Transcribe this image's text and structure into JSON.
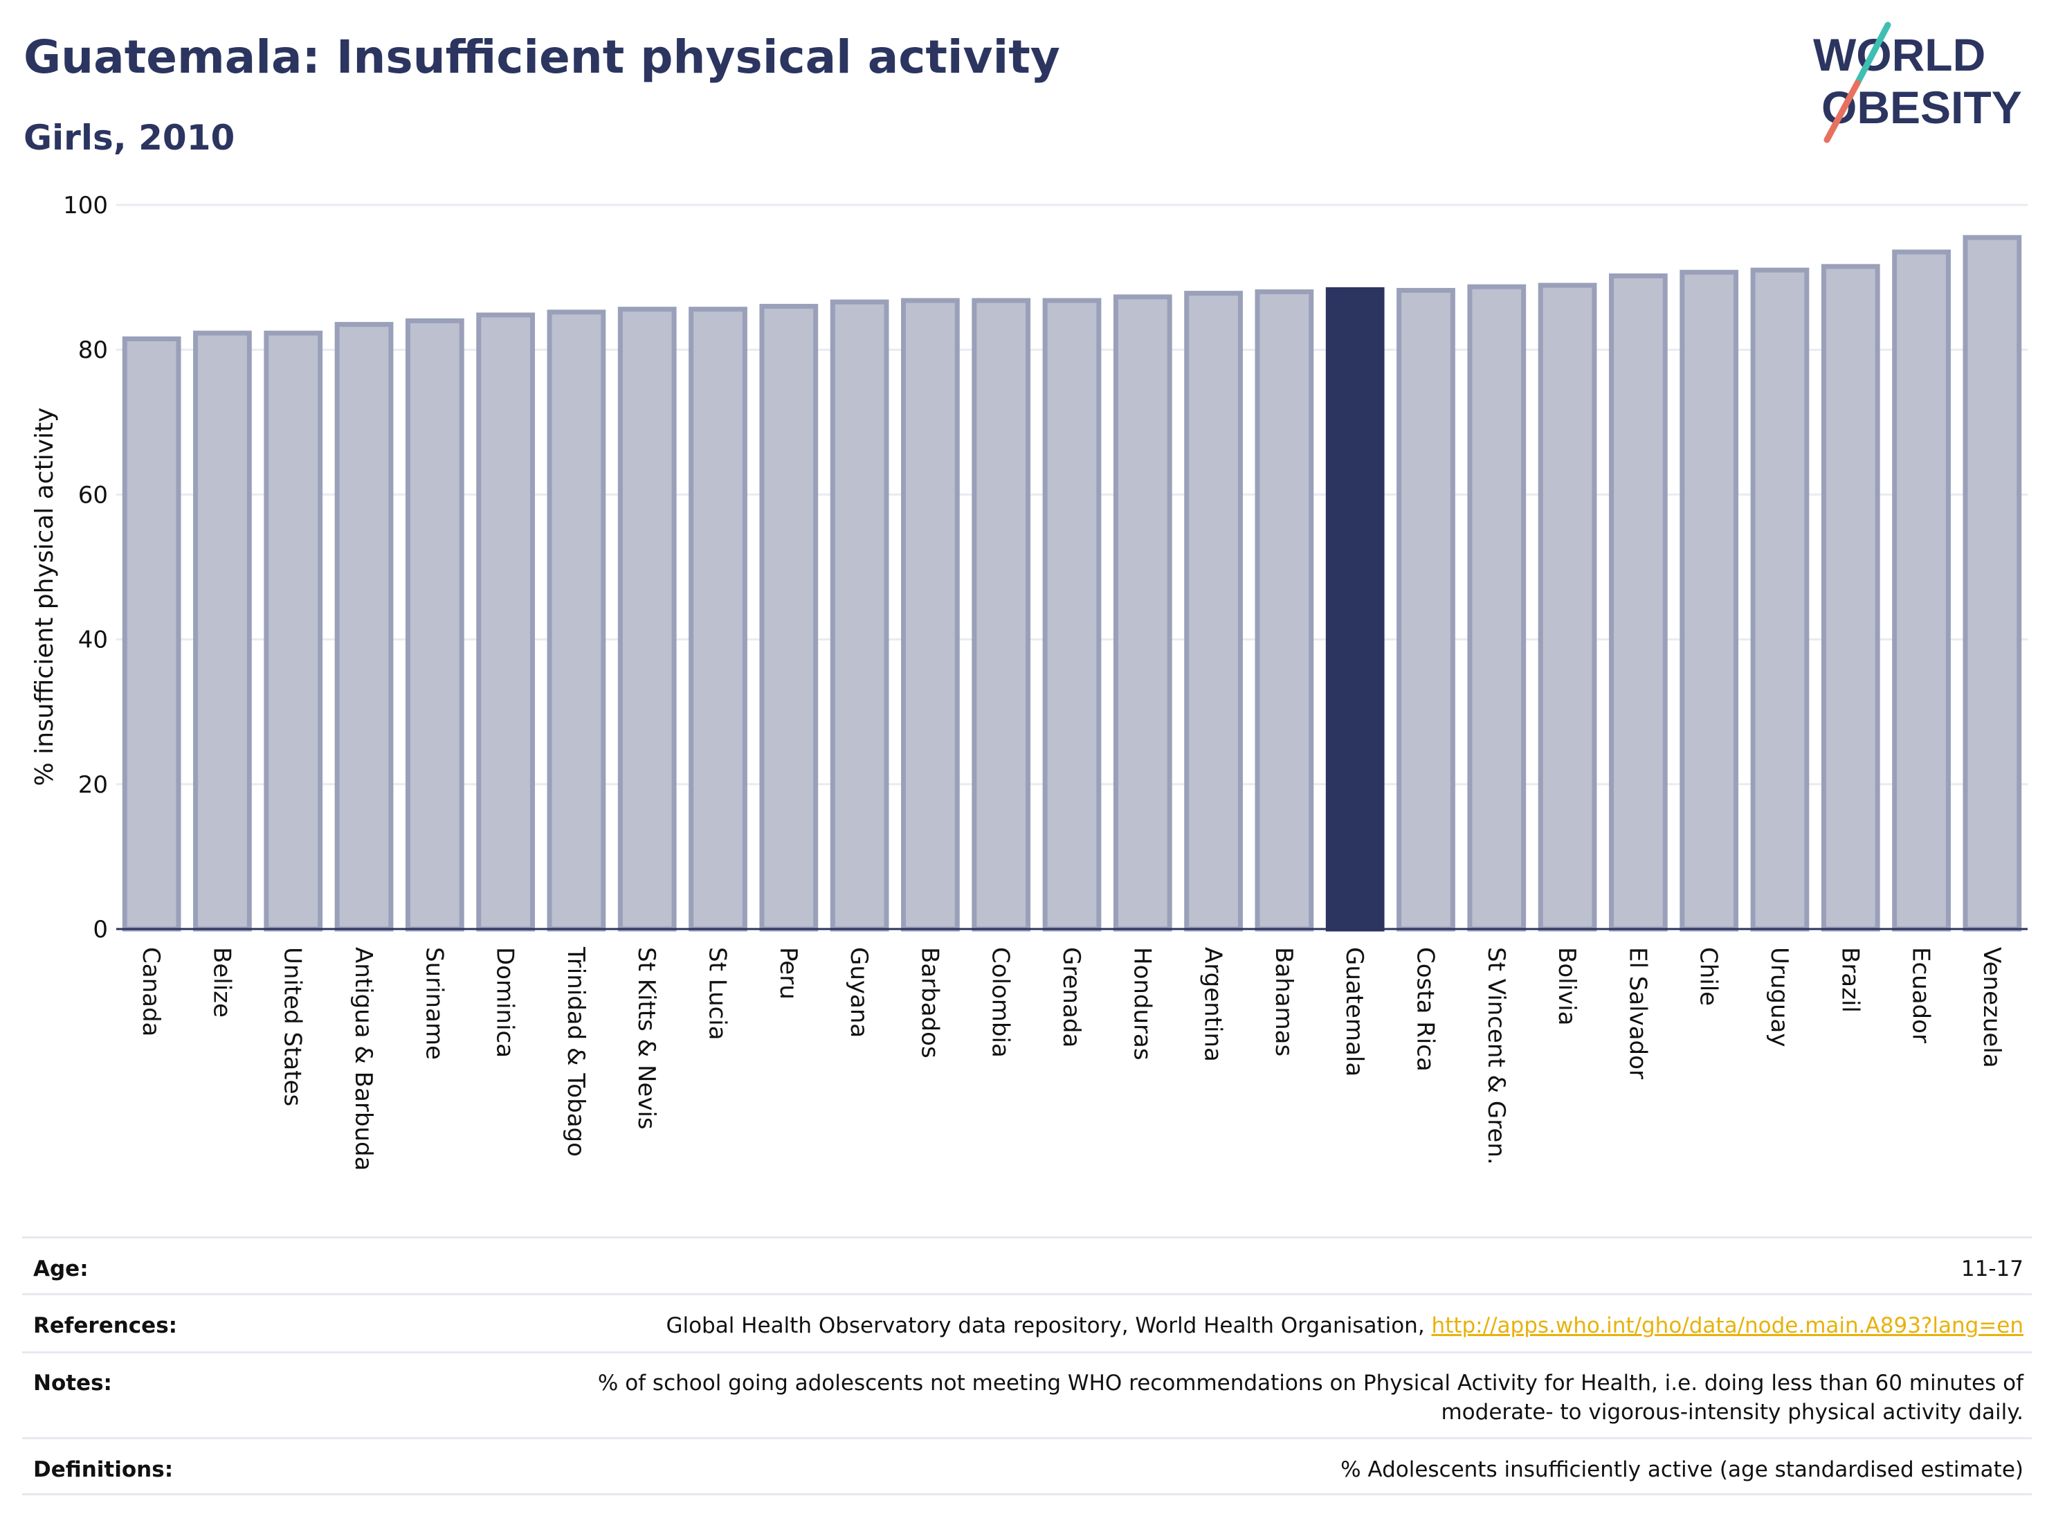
{
  "header": {
    "title": "Guatemala: Insufficient physical activity",
    "subtitle": "Girls, 2010"
  },
  "logo": {
    "line1": "WORLD",
    "line2": "OBESITY",
    "colors": {
      "text": "#2b3560",
      "slash_teal": "#3fbfb1",
      "slash_red": "#e8705f"
    }
  },
  "chart_data": {
    "type": "bar",
    "ylabel": "% insufficient physical activity",
    "ylim": [
      0,
      100
    ],
    "yticks": [
      0,
      20,
      40,
      60,
      80,
      100
    ],
    "grid": true,
    "highlight": "Guatemala",
    "colors": {
      "bar": "#bcc0cf",
      "bar_edge": "#9aa0b9",
      "highlight": "#2b3560"
    },
    "categories": [
      "Canada",
      "Belize",
      "United States",
      "Antigua & Barbuda",
      "Suriname",
      "Dominica",
      "Trinidad & Tobago",
      "St Kitts & Nevis",
      "St Lucia",
      "Peru",
      "Guyana",
      "Barbados",
      "Colombia",
      "Grenada",
      "Honduras",
      "Argentina",
      "Bahamas",
      "Guatemala",
      "Costa Rica",
      "St Vincent & Gren.",
      "Bolivia",
      "El Salvador",
      "Chile",
      "Uruguay",
      "Brazil",
      "Ecuador",
      "Venezuela"
    ],
    "values": [
      81.5,
      82.3,
      82.3,
      83.5,
      84.0,
      84.8,
      85.2,
      85.6,
      85.6,
      86.0,
      86.6,
      86.8,
      86.8,
      86.8,
      87.3,
      87.8,
      88.0,
      88.3,
      88.2,
      88.7,
      88.9,
      90.2,
      90.7,
      91.0,
      91.5,
      93.5,
      95.5
    ]
  },
  "info": {
    "age": {
      "label": "Age:",
      "value": "11-17"
    },
    "references": {
      "label": "References:",
      "text": "Global Health Observatory data repository, World Health Organisation, ",
      "link": "http://apps.who.int/gho/data/node.main.A893?lang=en"
    },
    "notes": {
      "label": "Notes:",
      "value": "% of school going adolescents not meeting WHO recommendations on Physical Activity for Health, i.e. doing less than 60 minutes of moderate- to vigorous-intensity physical activity daily."
    },
    "definitions": {
      "label": "Definitions:",
      "value": "% Adolescents insufficiently active (age standardised estimate)"
    }
  }
}
